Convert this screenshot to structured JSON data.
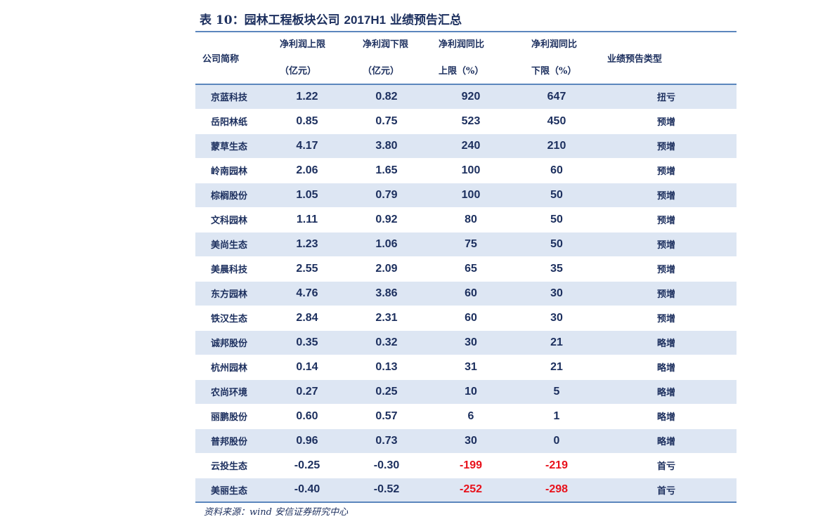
{
  "title": {
    "prefix": "表 10：园林工程板块公司",
    "code": "2017H1",
    "suffix": "业绩预告汇总"
  },
  "header": {
    "company": "公司简称",
    "upper_l1": "净利润上限",
    "upper_l2": "（亿元）",
    "lower_l1": "净利润下限",
    "lower_l2": "（亿元）",
    "yoy_upper_l1": "净利润同比",
    "yoy_upper_l2": "上限（%）",
    "yoy_lower_l1": "净利润同比",
    "yoy_lower_l2": "下限（%）",
    "type": "业绩预告类型"
  },
  "rows": [
    {
      "name": "京蓝科技",
      "upper": "1.22",
      "lower": "0.82",
      "yoy_upper": "920",
      "yoy_lower": "647",
      "type": "扭亏"
    },
    {
      "name": "岳阳林纸",
      "upper": "0.85",
      "lower": "0.75",
      "yoy_upper": "523",
      "yoy_lower": "450",
      "type": "预增"
    },
    {
      "name": "蒙草生态",
      "upper": "4.17",
      "lower": "3.80",
      "yoy_upper": "240",
      "yoy_lower": "210",
      "type": "预增"
    },
    {
      "name": "岭南园林",
      "upper": "2.06",
      "lower": "1.65",
      "yoy_upper": "100",
      "yoy_lower": "60",
      "type": "预增"
    },
    {
      "name": "棕榈股份",
      "upper": "1.05",
      "lower": "0.79",
      "yoy_upper": "100",
      "yoy_lower": "50",
      "type": "预增"
    },
    {
      "name": "文科园林",
      "upper": "1.11",
      "lower": "0.92",
      "yoy_upper": "80",
      "yoy_lower": "50",
      "type": "预增"
    },
    {
      "name": "美尚生态",
      "upper": "1.23",
      "lower": "1.06",
      "yoy_upper": "75",
      "yoy_lower": "50",
      "type": "预增"
    },
    {
      "name": "美晨科技",
      "upper": "2.55",
      "lower": "2.09",
      "yoy_upper": "65",
      "yoy_lower": "35",
      "type": "预增"
    },
    {
      "name": "东方园林",
      "upper": "4.76",
      "lower": "3.86",
      "yoy_upper": "60",
      "yoy_lower": "30",
      "type": "预增"
    },
    {
      "name": "铁汉生态",
      "upper": "2.84",
      "lower": "2.31",
      "yoy_upper": "60",
      "yoy_lower": "30",
      "type": "预增"
    },
    {
      "name": "诚邦股份",
      "upper": "0.35",
      "lower": "0.32",
      "yoy_upper": "30",
      "yoy_lower": "21",
      "type": "略增"
    },
    {
      "name": "杭州园林",
      "upper": "0.14",
      "lower": "0.13",
      "yoy_upper": "31",
      "yoy_lower": "21",
      "type": "略增"
    },
    {
      "name": "农尚环境",
      "upper": "0.27",
      "lower": "0.25",
      "yoy_upper": "10",
      "yoy_lower": "5",
      "type": "略增"
    },
    {
      "name": "丽鹏股份",
      "upper": "0.60",
      "lower": "0.57",
      "yoy_upper": "6",
      "yoy_lower": "1",
      "type": "略增"
    },
    {
      "name": "普邦股份",
      "upper": "0.96",
      "lower": "0.73",
      "yoy_upper": "30",
      "yoy_lower": "0",
      "type": "略增"
    },
    {
      "name": "云投生态",
      "upper": "-0.25",
      "lower": "-0.30",
      "yoy_upper": "-199",
      "yoy_lower": "-219",
      "type": "首亏"
    },
    {
      "name": "美丽生态",
      "upper": "-0.40",
      "lower": "-0.52",
      "yoy_upper": "-252",
      "yoy_lower": "-298",
      "type": "首亏"
    }
  ],
  "source": "资料来源：wind 安信证券研究中心",
  "colors": {
    "text": "#1c2f5e",
    "stripe": "#dde6f3",
    "rule": "#5b86bd",
    "negative": "#e8111b"
  }
}
